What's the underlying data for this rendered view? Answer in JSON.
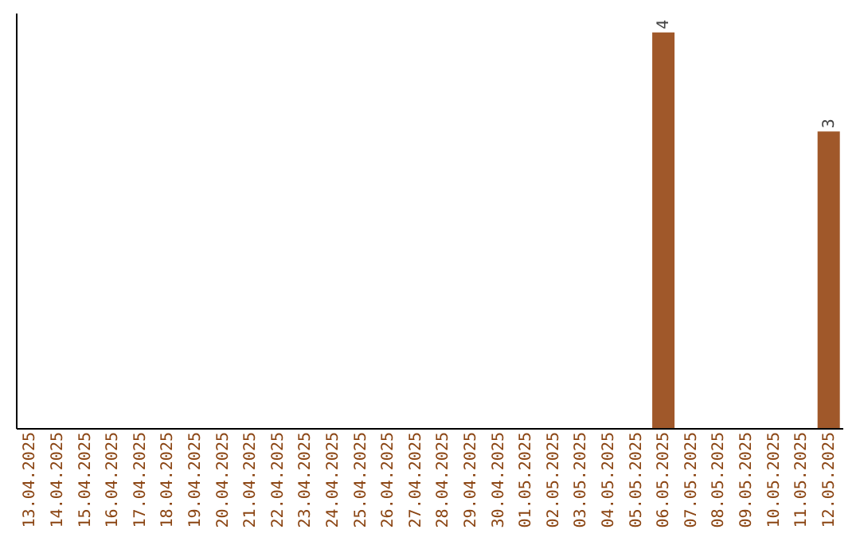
{
  "chart_data": {
    "type": "bar",
    "categories": [
      "13.04.2025",
      "14.04.2025",
      "15.04.2025",
      "16.04.2025",
      "17.04.2025",
      "18.04.2025",
      "19.04.2025",
      "20.04.2025",
      "21.04.2025",
      "22.04.2025",
      "23.04.2025",
      "24.04.2025",
      "25.04.2025",
      "26.04.2025",
      "27.04.2025",
      "28.04.2025",
      "29.04.2025",
      "30.04.2025",
      "01.05.2025",
      "02.05.2025",
      "03.05.2025",
      "04.05.2025",
      "05.05.2025",
      "06.05.2025",
      "07.05.2025",
      "08.05.2025",
      "09.05.2025",
      "10.05.2025",
      "11.05.2025",
      "12.05.2025"
    ],
    "values": [
      null,
      null,
      null,
      null,
      null,
      null,
      null,
      null,
      null,
      null,
      null,
      null,
      null,
      null,
      null,
      null,
      null,
      null,
      null,
      null,
      null,
      null,
      null,
      4,
      null,
      null,
      null,
      null,
      null,
      3
    ],
    "data_labels": true,
    "color": "#a0582a",
    "ylim": [
      0,
      4.2
    ],
    "tick_labels": "x",
    "grid": false
  }
}
